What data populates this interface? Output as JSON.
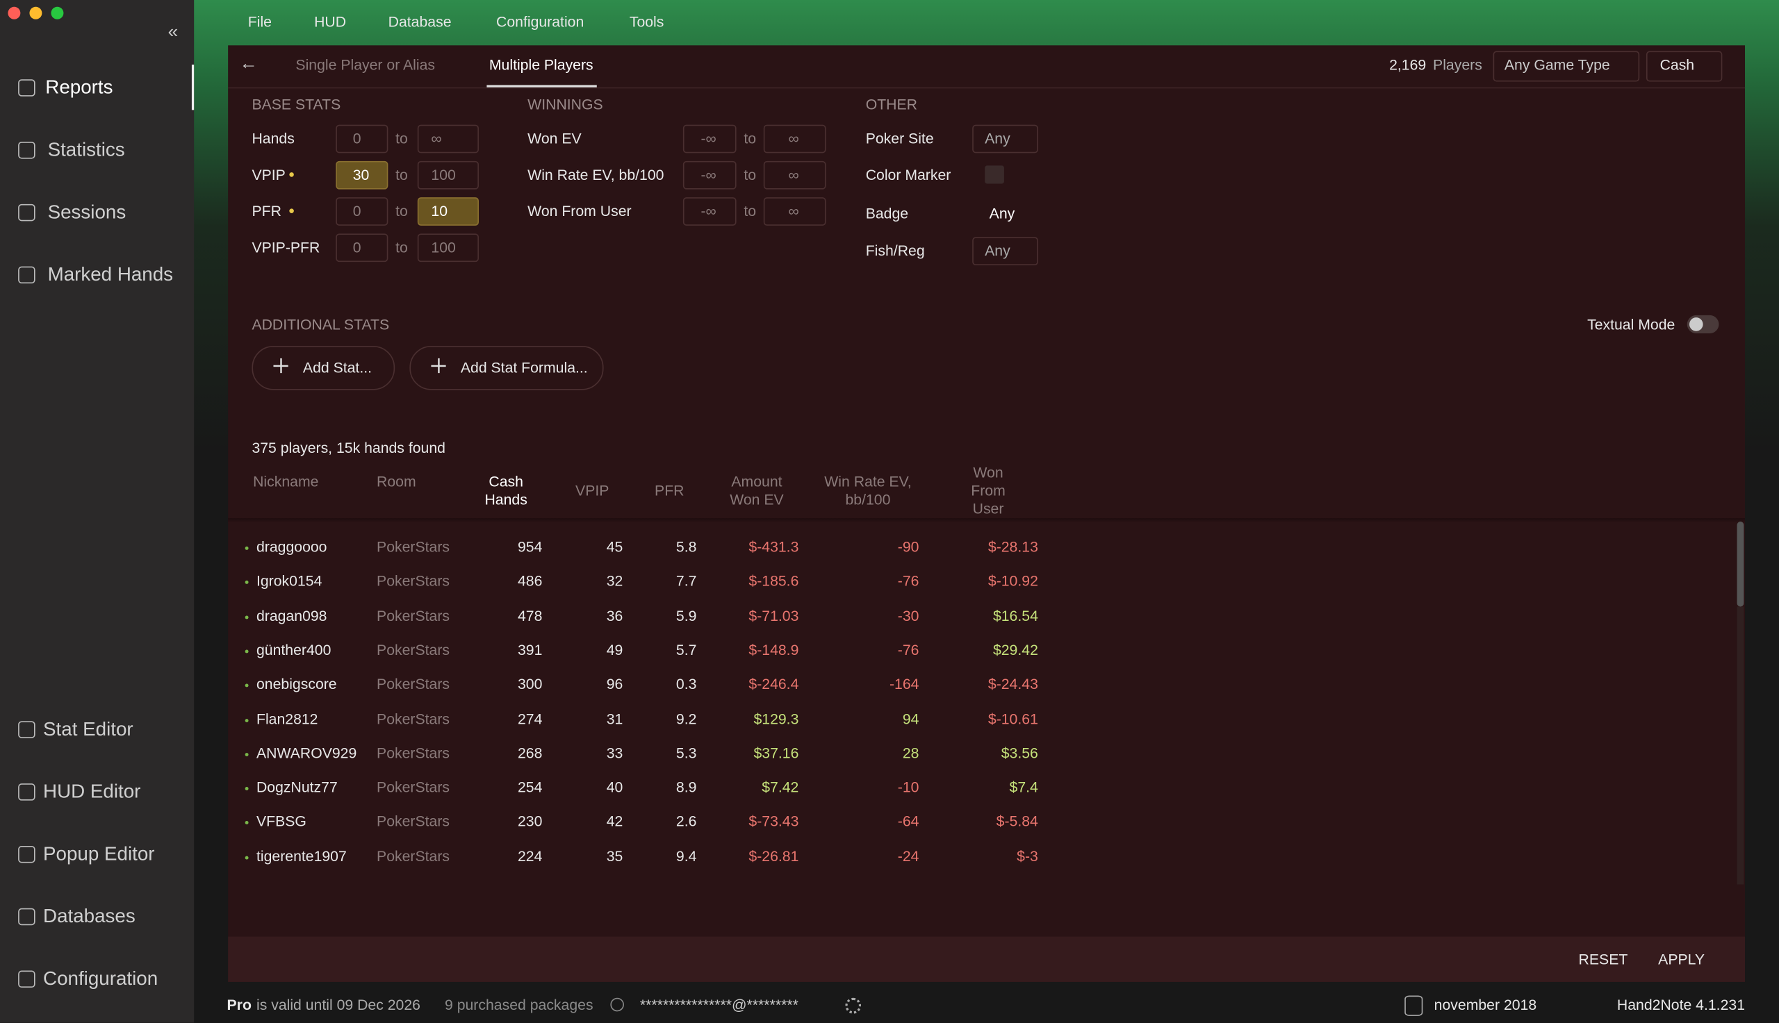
{
  "menu": [
    "File",
    "HUD",
    "Database",
    "Configuration",
    "Tools"
  ],
  "sidebar": {
    "items": [
      "Reports",
      "Statistics",
      "Sessions",
      "Marked Hands",
      "Stat Editor",
      "HUD Editor",
      "Popup Editor",
      "Databases",
      "Configuration"
    ]
  },
  "tabs": [
    "Single Player or Alias",
    "Multiple Players"
  ],
  "header": {
    "players_count": "2,169",
    "players_label": "Players",
    "game_type": "Any Game Type",
    "mode": "Cash"
  },
  "filters": {
    "to_word": "to",
    "base_stats": {
      "title": "BASE STATS",
      "rows": [
        {
          "label": "Hands",
          "from": "0",
          "to": "∞"
        },
        {
          "label": "VPIP",
          "from": "30",
          "to": "100"
        },
        {
          "label": "PFR",
          "from": "0",
          "to": "10"
        },
        {
          "label": "VPIP-PFR",
          "from": "0",
          "to": "100"
        }
      ]
    },
    "winnings": {
      "title": "WINNINGS",
      "rows": [
        {
          "label": "Won EV",
          "from": "-∞",
          "to": "∞"
        },
        {
          "label": "Win Rate EV, bb/100",
          "from": "-∞",
          "to": "∞"
        },
        {
          "label": "Won From User",
          "from": "-∞",
          "to": "∞"
        }
      ]
    },
    "other": {
      "title": "OTHER",
      "rows": [
        {
          "label": "Poker Site",
          "value": "Any"
        },
        {
          "label": "Color Marker"
        },
        {
          "label": "Badge",
          "value": "Any"
        },
        {
          "label": "Fish/Reg",
          "value": "Any"
        }
      ]
    }
  },
  "additional": {
    "title": "ADDITIONAL STATS",
    "textual_mode": "Textual Mode",
    "buttons": [
      "Add Stat...",
      "Add Stat Formula..."
    ]
  },
  "summary": "375 players, 15k hands found",
  "table": {
    "headers": [
      "Nickname",
      "Room",
      "Cash Hands",
      "VPIP",
      "PFR",
      "Amount Won EV",
      "Win Rate EV, bb/100",
      "Won From User"
    ],
    "rows": [
      [
        "draggoooo",
        "PokerStars",
        "954",
        "45",
        "5.8",
        "$-431.3",
        "-90",
        "$-28.13"
      ],
      [
        "Igrok0154",
        "PokerStars",
        "486",
        "32",
        "7.7",
        "$-185.6",
        "-76",
        "$-10.92"
      ],
      [
        "dragan098",
        "PokerStars",
        "478",
        "36",
        "5.9",
        "$-71.03",
        "-30",
        "$16.54"
      ],
      [
        "günther400",
        "PokerStars",
        "391",
        "49",
        "5.7",
        "$-148.9",
        "-76",
        "$29.42"
      ],
      [
        "onebigscore",
        "PokerStars",
        "300",
        "96",
        "0.3",
        "$-246.4",
        "-164",
        "$-24.43"
      ],
      [
        "Flan2812",
        "PokerStars",
        "274",
        "31",
        "9.2",
        "$129.3",
        "94",
        "$-10.61"
      ],
      [
        "ANWAROV929",
        "PokerStars",
        "268",
        "33",
        "5.3",
        "$37.16",
        "28",
        "$3.56"
      ],
      [
        "DogzNutz77",
        "PokerStars",
        "254",
        "40",
        "8.9",
        "$7.42",
        "-10",
        "$7.4"
      ],
      [
        "VFBSG",
        "PokerStars",
        "230",
        "42",
        "2.6",
        "$-73.43",
        "-64",
        "$-5.84"
      ],
      [
        "tigerente1907",
        "PokerStars",
        "224",
        "35",
        "9.4",
        "$-26.81",
        "-24",
        "$-3"
      ]
    ]
  },
  "actions": [
    "RESET",
    "APPLY"
  ],
  "status": {
    "plan": "Pro",
    "validity": "is valid until 09 Dec 2026",
    "packages": "9 purchased packages",
    "email": "****************@*********",
    "database": "november 2018",
    "version": "Hand2Note 4.1.231"
  }
}
